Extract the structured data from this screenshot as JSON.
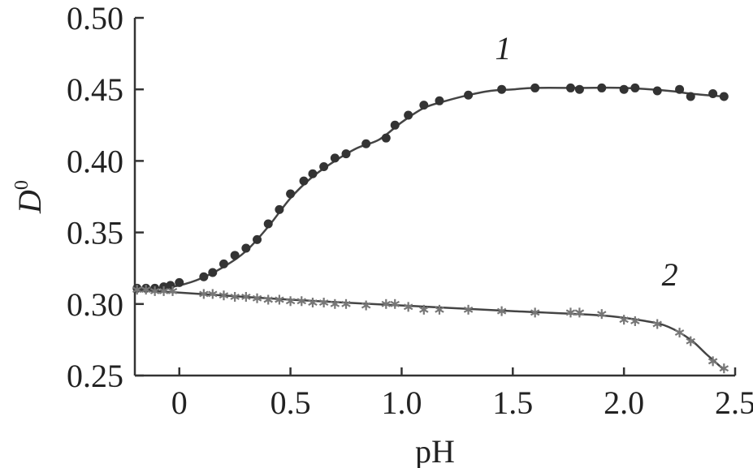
{
  "chart_data": {
    "type": "scatter",
    "title": "",
    "xlabel": "pH",
    "ylabel": "D",
    "ylabel_superscript": "0",
    "xlim": [
      -0.2,
      2.5
    ],
    "ylim": [
      0.25,
      0.5
    ],
    "x_ticks": [
      "0",
      "0.5",
      "1.0",
      "1.5",
      "2.0",
      "2.5"
    ],
    "x_tick_values": [
      0,
      0.5,
      1.0,
      1.5,
      2.0,
      2.5
    ],
    "y_ticks": [
      "0.25",
      "0.30",
      "0.35",
      "0.40",
      "0.45",
      "0.50"
    ],
    "y_tick_values": [
      0.25,
      0.3,
      0.35,
      0.4,
      0.45,
      0.5
    ],
    "grid": false,
    "series": [
      {
        "name": "1",
        "marker": "circle",
        "color": "#333333",
        "label_at": [
          1.42,
          0.471
        ],
        "points": [
          [
            -0.19,
            0.311
          ],
          [
            -0.15,
            0.311
          ],
          [
            -0.11,
            0.311
          ],
          [
            -0.07,
            0.312
          ],
          [
            -0.04,
            0.313
          ],
          [
            0.0,
            0.315
          ],
          [
            0.11,
            0.319
          ],
          [
            0.15,
            0.322
          ],
          [
            0.2,
            0.328
          ],
          [
            0.25,
            0.334
          ],
          [
            0.3,
            0.339
          ],
          [
            0.35,
            0.345
          ],
          [
            0.4,
            0.356
          ],
          [
            0.45,
            0.366
          ],
          [
            0.5,
            0.377
          ],
          [
            0.56,
            0.386
          ],
          [
            0.6,
            0.391
          ],
          [
            0.65,
            0.396
          ],
          [
            0.7,
            0.402
          ],
          [
            0.75,
            0.405
          ],
          [
            0.84,
            0.412
          ],
          [
            0.93,
            0.416
          ],
          [
            0.97,
            0.425
          ],
          [
            1.03,
            0.432
          ],
          [
            1.1,
            0.439
          ],
          [
            1.17,
            0.442
          ],
          [
            1.3,
            0.446
          ],
          [
            1.45,
            0.45
          ],
          [
            1.6,
            0.451
          ],
          [
            1.76,
            0.451
          ],
          [
            1.8,
            0.45
          ],
          [
            1.9,
            0.451
          ],
          [
            2.0,
            0.45
          ],
          [
            2.05,
            0.451
          ],
          [
            2.15,
            0.449
          ],
          [
            2.25,
            0.45
          ],
          [
            2.3,
            0.445
          ],
          [
            2.4,
            0.447
          ],
          [
            2.45,
            0.445
          ]
        ],
        "curve": [
          [
            -0.2,
            0.31
          ],
          [
            -0.1,
            0.311
          ],
          [
            0.0,
            0.313
          ],
          [
            0.1,
            0.318
          ],
          [
            0.2,
            0.326
          ],
          [
            0.3,
            0.337
          ],
          [
            0.4,
            0.354
          ],
          [
            0.5,
            0.374
          ],
          [
            0.6,
            0.389
          ],
          [
            0.7,
            0.4
          ],
          [
            0.8,
            0.409
          ],
          [
            0.9,
            0.415
          ],
          [
            1.0,
            0.427
          ],
          [
            1.1,
            0.437
          ],
          [
            1.2,
            0.442
          ],
          [
            1.3,
            0.446
          ],
          [
            1.4,
            0.449
          ],
          [
            1.5,
            0.45
          ],
          [
            1.6,
            0.451
          ],
          [
            1.8,
            0.451
          ],
          [
            2.0,
            0.451
          ],
          [
            2.2,
            0.449
          ],
          [
            2.3,
            0.447
          ],
          [
            2.45,
            0.445
          ]
        ]
      },
      {
        "name": "2",
        "marker": "star",
        "color": "#777777",
        "label_at": [
          2.17,
          0.313
        ],
        "points": [
          [
            -0.19,
            0.31
          ],
          [
            -0.15,
            0.31
          ],
          [
            -0.11,
            0.309
          ],
          [
            -0.07,
            0.309
          ],
          [
            -0.03,
            0.309
          ],
          [
            0.11,
            0.307
          ],
          [
            0.15,
            0.307
          ],
          [
            0.2,
            0.306
          ],
          [
            0.25,
            0.305
          ],
          [
            0.3,
            0.305
          ],
          [
            0.35,
            0.304
          ],
          [
            0.4,
            0.303
          ],
          [
            0.45,
            0.303
          ],
          [
            0.5,
            0.302
          ],
          [
            0.55,
            0.302
          ],
          [
            0.6,
            0.301
          ],
          [
            0.65,
            0.301
          ],
          [
            0.7,
            0.3
          ],
          [
            0.75,
            0.3
          ],
          [
            0.84,
            0.299
          ],
          [
            0.93,
            0.3
          ],
          [
            0.97,
            0.3
          ],
          [
            1.03,
            0.298
          ],
          [
            1.1,
            0.296
          ],
          [
            1.17,
            0.296
          ],
          [
            1.3,
            0.296
          ],
          [
            1.45,
            0.295
          ],
          [
            1.6,
            0.294
          ],
          [
            1.76,
            0.294
          ],
          [
            1.8,
            0.294
          ],
          [
            1.9,
            0.293
          ],
          [
            2.0,
            0.289
          ],
          [
            2.05,
            0.288
          ],
          [
            2.15,
            0.286
          ],
          [
            2.25,
            0.28
          ],
          [
            2.3,
            0.274
          ],
          [
            2.4,
            0.26
          ],
          [
            2.45,
            0.255
          ]
        ],
        "curve": [
          [
            -0.2,
            0.31
          ],
          [
            0.0,
            0.308
          ],
          [
            0.5,
            0.303
          ],
          [
            1.0,
            0.299
          ],
          [
            1.5,
            0.295
          ],
          [
            1.9,
            0.292
          ],
          [
            2.1,
            0.288
          ],
          [
            2.2,
            0.284
          ],
          [
            2.3,
            0.275
          ],
          [
            2.37,
            0.265
          ],
          [
            2.45,
            0.254
          ]
        ]
      }
    ]
  }
}
